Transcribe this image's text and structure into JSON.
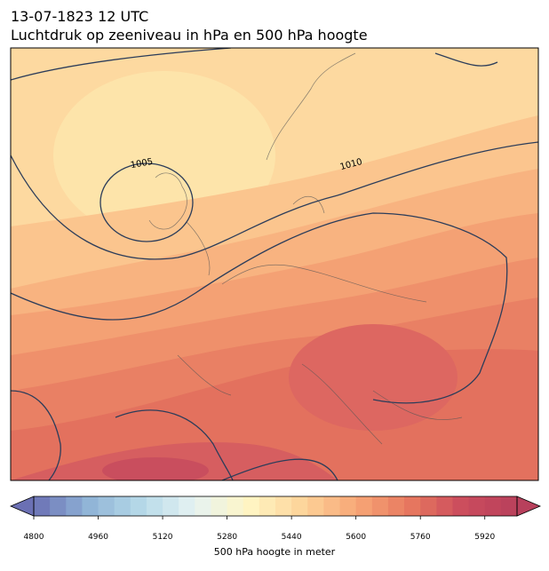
{
  "header": {
    "title": "13-07-1823 12 UTC",
    "subtitle": "Luchtdruk op zeeniveau in hPa en 500 hPa hoogte"
  },
  "map": {
    "contour_labels": [
      "1005",
      "1010"
    ]
  },
  "colorbar": {
    "label": "500 hPa hoogte in meter",
    "vmin": 4800,
    "vmax": 6000,
    "step": 40,
    "ticks": [
      4800,
      4960,
      5120,
      5280,
      5440,
      5600,
      5760,
      5920
    ],
    "extend": "both",
    "colors": [
      "#6b70b4",
      "#8fb3d6",
      "#b6d9e8",
      "#e6f3f2",
      "#fff6c4",
      "#fdd49a",
      "#f7a777",
      "#e7785f",
      "#cb4c5d",
      "#b8405c"
    ]
  }
}
